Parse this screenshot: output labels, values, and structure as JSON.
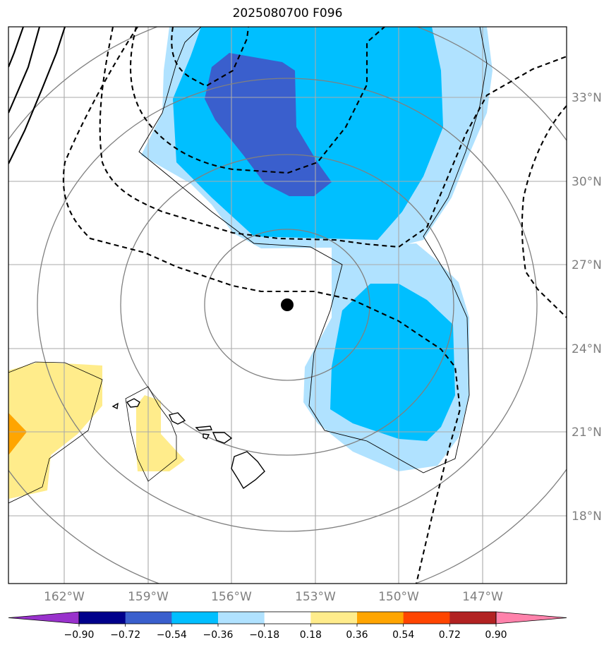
{
  "title": "2025080700 F096",
  "map": {
    "lat_labels": [
      "33°N",
      "30°N",
      "27°N",
      "24°N",
      "21°N",
      "18°N"
    ],
    "lon_labels": [
      "162°W",
      "159°W",
      "156°W",
      "153°W",
      "150°W",
      "147°W"
    ],
    "storm_center": "black-dot-marker"
  },
  "colorbar": {
    "colors": [
      "#9932cc",
      "#00008b",
      "#3a5fcd",
      "#00bfff",
      "#b0e2ff",
      "#ffffff",
      "#ffec8b",
      "#ffa500",
      "#ff4500",
      "#b22222",
      "#ff82ab"
    ],
    "tick_labels": [
      "−0.90",
      "−0.72",
      "−0.54",
      "−0.36",
      "−0.18",
      "0.18",
      "0.36",
      "0.54",
      "0.72",
      "0.90"
    ]
  },
  "colors": {
    "frame": "#000000",
    "grid": "#aaaaaa",
    "range_rings": "#808080",
    "contours": "#000000"
  }
}
